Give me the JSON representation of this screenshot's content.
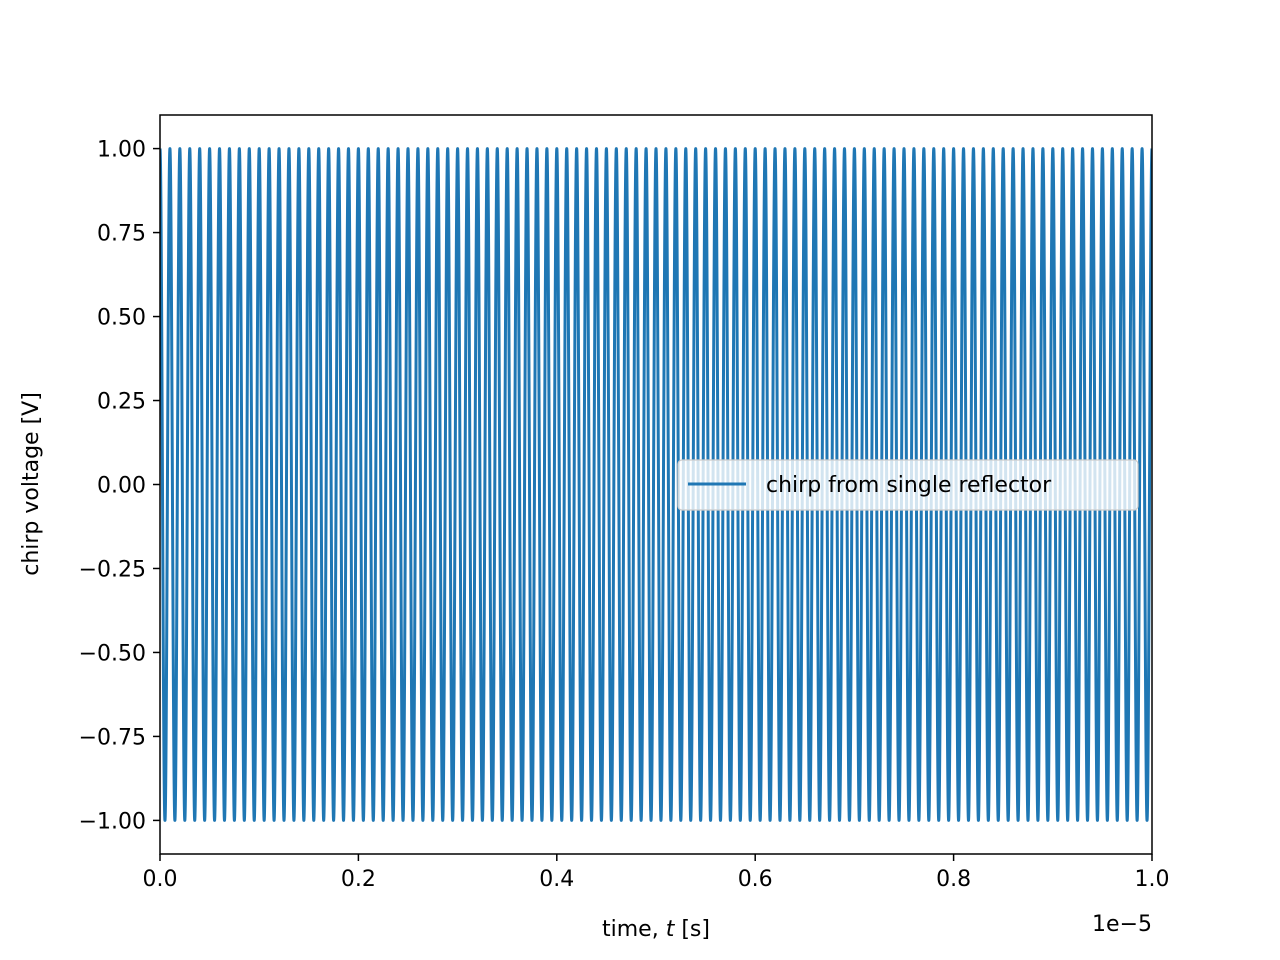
{
  "chart_data": {
    "type": "line",
    "title": "",
    "xlabel": "time, t [s]",
    "xlabel_prefix": "time, ",
    "xlabel_var": "t",
    "xlabel_suffix": " [s]",
    "ylabel": "chirp voltage [V]",
    "x_offset_text": "1e−5",
    "x_scale_factor": 1e-05,
    "xlim": [
      0.0,
      1.0
    ],
    "ylim": [
      -1.1,
      1.1
    ],
    "xticks": [
      0.0,
      0.2,
      0.4,
      0.6,
      0.8,
      1.0
    ],
    "xtick_labels": [
      "0.0",
      "0.2",
      "0.4",
      "0.6",
      "0.8",
      "1.0"
    ],
    "yticks": [
      1.0,
      0.75,
      0.5,
      0.25,
      0.0,
      -0.25,
      -0.5,
      -0.75,
      -1.0
    ],
    "ytick_labels": [
      "1.00",
      "0.75",
      "0.50",
      "0.25",
      "0.00",
      "−0.25",
      "−0.50",
      "−0.75",
      "−1.00"
    ],
    "grid": false,
    "legend_position": "center-right",
    "series": [
      {
        "name": "chirp from single reflector",
        "color": "#1f77b4",
        "function": "cos",
        "amplitude": 1.0,
        "cycles": 100,
        "x_start": 0.0,
        "x_end": 1.0
      }
    ]
  }
}
